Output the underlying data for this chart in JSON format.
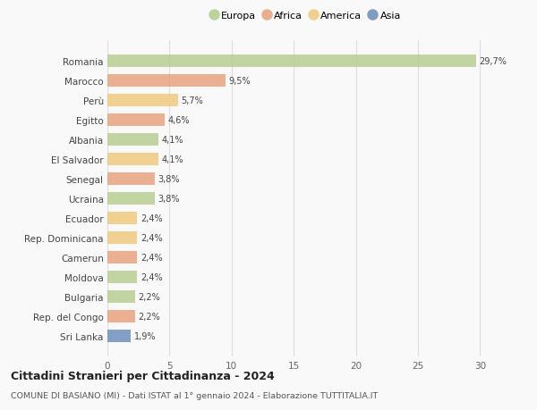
{
  "countries": [
    "Romania",
    "Marocco",
    "Perù",
    "Egitto",
    "Albania",
    "El Salvador",
    "Senegal",
    "Ucraina",
    "Ecuador",
    "Rep. Dominicana",
    "Camerun",
    "Moldova",
    "Bulgaria",
    "Rep. del Congo",
    "Sri Lanka"
  ],
  "values": [
    29.7,
    9.5,
    5.7,
    4.6,
    4.1,
    4.1,
    3.8,
    3.8,
    2.4,
    2.4,
    2.4,
    2.4,
    2.2,
    2.2,
    1.9
  ],
  "labels": [
    "29,7%",
    "9,5%",
    "5,7%",
    "4,6%",
    "4,1%",
    "4,1%",
    "3,8%",
    "3,8%",
    "2,4%",
    "2,4%",
    "2,4%",
    "2,4%",
    "2,2%",
    "2,2%",
    "1,9%"
  ],
  "continents": [
    "Europa",
    "Africa",
    "America",
    "Africa",
    "Europa",
    "America",
    "Africa",
    "Europa",
    "America",
    "America",
    "Africa",
    "Europa",
    "Europa",
    "Africa",
    "Asia"
  ],
  "colors": {
    "Europa": "#b5cc8e",
    "Africa": "#e8a07c",
    "America": "#f0c97a",
    "Asia": "#6b8cba"
  },
  "legend_order": [
    "Europa",
    "Africa",
    "America",
    "Asia"
  ],
  "xlim": [
    0,
    32
  ],
  "xticks": [
    0,
    5,
    10,
    15,
    20,
    25,
    30
  ],
  "title": "Cittadini Stranieri per Cittadinanza - 2024",
  "subtitle": "COMUNE DI BASIANO (MI) - Dati ISTAT al 1° gennaio 2024 - Elaborazione TUTTITALIA.IT",
  "background_color": "#f9f9f9",
  "grid_color": "#dddddd"
}
